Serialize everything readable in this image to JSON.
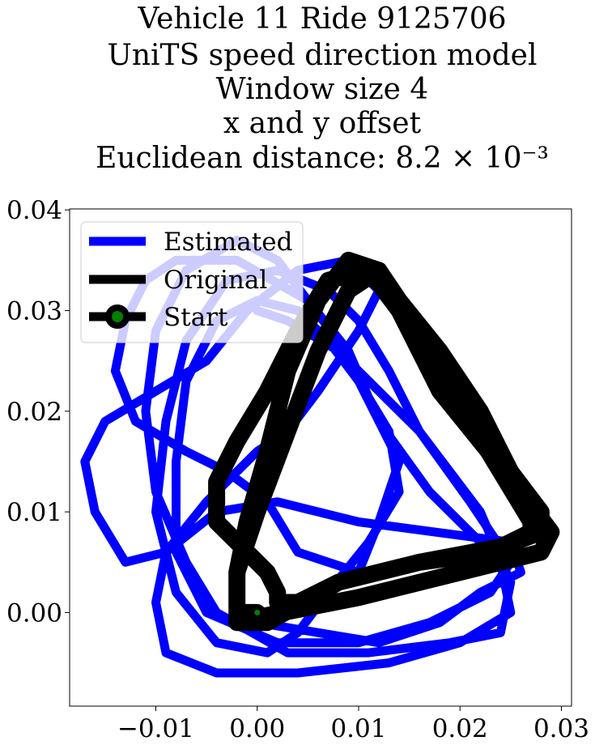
{
  "chart_data": {
    "type": "line",
    "title_lines": [
      "Vehicle 11 Ride 9125706",
      "UniTS speed direction model",
      "Window size 4",
      "x and y offset",
      "Euclidean distance: 8.2 × 10⁻³"
    ],
    "xlabel": "",
    "ylabel": "",
    "xlim": [
      -0.0185,
      0.031
    ],
    "ylim": [
      -0.0093,
      0.0401
    ],
    "xticks": [
      -0.01,
      0.0,
      0.01,
      0.02,
      0.03
    ],
    "xtick_labels": [
      "−0.01",
      "0.00",
      "0.01",
      "0.02",
      "0.03"
    ],
    "yticks": [
      0.0,
      0.01,
      0.02,
      0.03,
      0.04
    ],
    "ytick_labels": [
      "0.00",
      "0.01",
      "0.02",
      "0.03",
      "0.04"
    ],
    "grid": false,
    "legend": {
      "location": "upper left",
      "entries": [
        "Estimated",
        "Original",
        "Start"
      ]
    },
    "colors": {
      "estimated": "#0000ff",
      "original": "#000000",
      "start_face": "#008000",
      "start_edge": "#000000"
    },
    "series": [
      {
        "name": "Estimated",
        "x": [
          0.0,
          0.012,
          0.018,
          0.022,
          0.026,
          0.025,
          0.01,
          0.002,
          -0.004,
          -0.009,
          -0.013,
          -0.016,
          -0.017,
          -0.015,
          -0.01,
          -0.005,
          -0.001,
          0.004,
          0.009,
          0.012,
          0.01,
          0.006,
          0.003,
          0.0,
          -0.005,
          -0.009,
          -0.01,
          -0.009,
          -0.004,
          0.004,
          0.013,
          0.02,
          0.025,
          0.024,
          0.017,
          0.012,
          0.009,
          0.005,
          -0.002,
          -0.008,
          -0.011,
          -0.013,
          -0.014,
          -0.012,
          -0.007,
          -0.003,
          0.001,
          0.004,
          0.01,
          0.012,
          0.014,
          0.011,
          0.008,
          0.005,
          0.002,
          -0.002,
          -0.007,
          -0.01,
          -0.011,
          -0.01,
          -0.007,
          -0.004,
          0.003,
          0.011,
          0.019,
          0.024,
          0.025,
          0.022,
          0.016,
          0.013,
          0.01,
          0.007,
          0.002,
          -0.003,
          -0.007,
          -0.009,
          -0.01,
          -0.008,
          -0.004,
          0.001,
          0.004,
          0.007,
          0.011,
          0.014,
          0.013,
          0.01,
          0.007,
          0.004,
          0.0,
          -0.004,
          -0.007,
          -0.008,
          -0.008,
          -0.005,
          0.002,
          0.01,
          0.017,
          0.023,
          0.025,
          0.021,
          0.016,
          0.008,
          0.003,
          0.0
        ],
        "y": [
          -0.001,
          -0.003,
          -0.001,
          0.002,
          0.004,
          0.007,
          0.009,
          0.011,
          0.01,
          0.006,
          0.005,
          0.01,
          0.015,
          0.019,
          0.022,
          0.025,
          0.03,
          0.034,
          0.035,
          0.032,
          0.028,
          0.022,
          0.018,
          0.016,
          0.011,
          0.006,
          0.001,
          -0.004,
          -0.006,
          -0.006,
          -0.005,
          -0.003,
          0.0,
          0.005,
          0.012,
          0.019,
          0.026,
          0.031,
          0.035,
          0.035,
          0.033,
          0.029,
          0.024,
          0.019,
          0.016,
          0.014,
          0.011,
          0.006,
          0.004,
          0.009,
          0.015,
          0.021,
          0.027,
          0.031,
          0.035,
          0.037,
          0.034,
          0.028,
          0.02,
          0.012,
          0.005,
          0.0,
          -0.004,
          -0.004,
          -0.003,
          -0.002,
          0.003,
          0.01,
          0.018,
          0.024,
          0.029,
          0.032,
          0.034,
          0.033,
          0.027,
          0.019,
          0.01,
          0.002,
          -0.003,
          -0.004,
          -0.002,
          0.002,
          0.007,
          0.012,
          0.018,
          0.023,
          0.027,
          0.03,
          0.031,
          0.029,
          0.023,
          0.015,
          0.006,
          0.0,
          -0.003,
          -0.003,
          -0.001,
          0.002,
          0.005,
          0.011,
          0.018,
          0.026,
          0.029,
          0.03
        ]
      },
      {
        "name": "Original",
        "x": [
          0.0,
          0.01,
          0.018,
          0.024,
          0.028,
          0.029,
          0.026,
          0.022,
          0.018,
          0.015,
          0.012,
          0.009,
          0.006,
          0.003,
          0.001,
          -0.001,
          -0.002,
          -0.002,
          -0.002,
          -0.001,
          0.001,
          0.008,
          0.016,
          0.023,
          0.027,
          0.027,
          0.024,
          0.021,
          0.017,
          0.014,
          0.011,
          0.007,
          0.004,
          0.001,
          -0.002,
          -0.004,
          -0.004,
          -0.001,
          0.001,
          0.002,
          0.002,
          0.004,
          0.008,
          0.016,
          0.024,
          0.028,
          0.028,
          0.025,
          0.022,
          0.018,
          0.014,
          0.012,
          0.009,
          0.006,
          0.003,
          0.0,
          -0.002,
          -0.002,
          0.0
        ],
        "y": [
          -0.0005,
          0.0015,
          0.0035,
          0.005,
          0.006,
          0.008,
          0.012,
          0.017,
          0.022,
          0.028,
          0.034,
          0.035,
          0.031,
          0.024,
          0.016,
          0.009,
          0.004,
          0.001,
          -0.001,
          -0.001,
          -0.001,
          0.003,
          0.005,
          0.006,
          0.008,
          0.009,
          0.014,
          0.019,
          0.025,
          0.03,
          0.034,
          0.033,
          0.028,
          0.022,
          0.017,
          0.013,
          0.009,
          0.006,
          0.004,
          0.002,
          0.001,
          0.001,
          0.003,
          0.005,
          0.0065,
          0.008,
          0.01,
          0.014,
          0.02,
          0.026,
          0.031,
          0.034,
          0.032,
          0.026,
          0.018,
          0.01,
          0.004,
          0.0,
          0.0
        ]
      }
    ],
    "start_point": {
      "x": 0.0,
      "y": 0.0
    }
  }
}
